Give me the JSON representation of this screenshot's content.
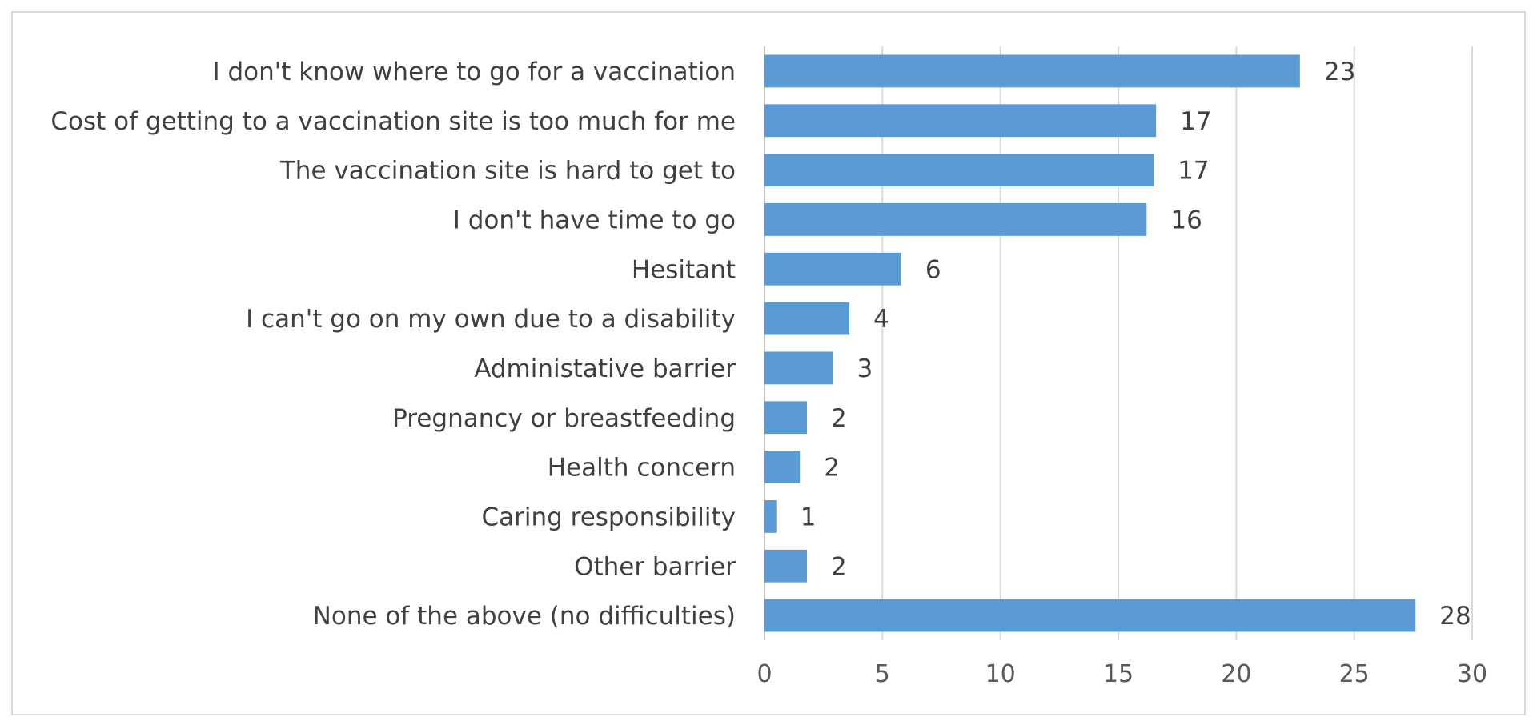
{
  "chart_data": {
    "type": "bar",
    "orientation": "horizontal",
    "title": "",
    "xlabel": "",
    "ylabel": "",
    "categories": [
      "I don't know where to go for a vaccination",
      "Cost of getting to a vaccination site is too much for me",
      "The vaccination site is hard to get to",
      "I don't have time to go",
      "Hesitant",
      "I can't go on my own due to a disability",
      "Administative barrier",
      "Pregnancy or breastfeeding",
      "Health concern",
      "Caring responsibility",
      "Other barrier",
      "None of the above (no difficulties)"
    ],
    "values": [
      22.7,
      16.6,
      16.5,
      16.2,
      5.8,
      3.6,
      2.9,
      1.8,
      1.5,
      0.5,
      1.8,
      27.6
    ],
    "data_labels": [
      "23",
      "17",
      "17",
      "16",
      "6",
      "4",
      "3",
      "2",
      "2",
      "1",
      "2",
      "28"
    ],
    "xlim": [
      0,
      30
    ],
    "x_ticks": [
      0,
      5,
      10,
      15,
      20,
      25,
      30
    ],
    "grid": "vertical",
    "legend": "none",
    "colors": {
      "bar": "#5b9bd5"
    }
  }
}
